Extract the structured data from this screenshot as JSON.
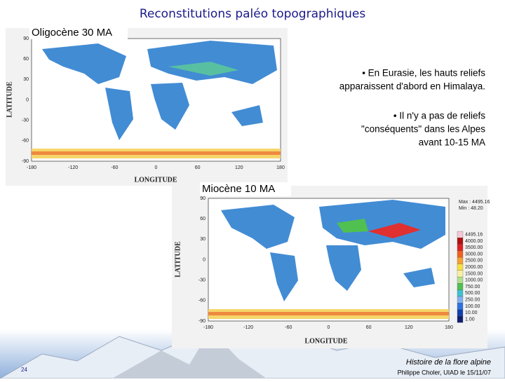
{
  "title": "Reconstitutions paléo topographiques",
  "map1": {
    "label": "Oligocène 30 MA",
    "y_axis_label": "LATITUDE",
    "x_axis_label": "LONGITUDE",
    "yticks": [
      "90",
      "60",
      "30",
      "0",
      "-30",
      "-60",
      "-90"
    ],
    "xticks": [
      "-180",
      "-120",
      "-60",
      "0",
      "60",
      "120",
      "180"
    ]
  },
  "bullets": [
    [
      "• En Eurasie, les hauts reliefs",
      "apparaissent d'abord en  Himalaya."
    ],
    [
      "• Il n'y a pas de reliefs",
      "\"conséquents\" dans les Alpes",
      "avant  10-15 MA"
    ]
  ],
  "map2": {
    "label": "Miocène 10 MA",
    "y_axis_label": "LATITUDE",
    "x_axis_label": "LONGITUDE",
    "yticks": [
      "90",
      "60",
      "30",
      "0",
      "-30",
      "-60",
      "-90"
    ],
    "xticks": [
      "-180",
      "-120",
      "-60",
      "0",
      "60",
      "120",
      "180"
    ],
    "stats": [
      "Max : 4495.16",
      "Min : 48.20"
    ],
    "legend": {
      "labels": [
        "4495.16",
        "4000.00",
        "3500.00",
        "3000.00",
        "2500.00",
        "2000.00",
        "1500.00",
        "1000.00",
        "750.00",
        "500.00",
        "250.00",
        "100.00",
        "10.00",
        "1.00"
      ],
      "colors": [
        "#f4c8d8",
        "#b01010",
        "#e02020",
        "#f06020",
        "#f8a030",
        "#f8e040",
        "#f8f0a0",
        "#b0e090",
        "#50c050",
        "#40c0d0",
        "#80b0f0",
        "#3070e0",
        "#1040b0",
        "#102070"
      ]
    }
  },
  "footer": {
    "page": "24",
    "course": "Histoire de la flore alpine",
    "author": "Philippe Choler, UIAD le 15/11/07"
  }
}
